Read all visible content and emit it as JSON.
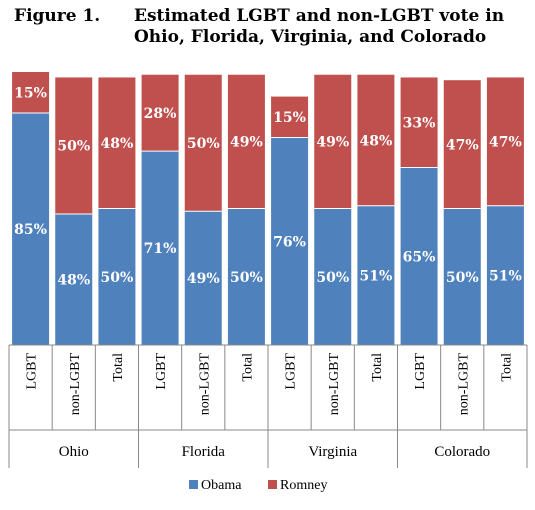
{
  "figure_label": "Figure 1.",
  "title": "Estimated LGBT and non-LGBT vote in Ohio, Florida, Virginia, and Colorado",
  "chart_data": {
    "type": "bar",
    "stacked": true,
    "groups": [
      {
        "name": "Ohio",
        "categories": [
          "LGBT",
          "non-LGBT",
          "Total"
        ]
      },
      {
        "name": "Florida",
        "categories": [
          "LGBT",
          "non-LGBT",
          "Total"
        ]
      },
      {
        "name": "Virginia",
        "categories": [
          "LGBT",
          "non-LGBT",
          "Total"
        ]
      },
      {
        "name": "Colorado",
        "categories": [
          "LGBT",
          "non-LGBT",
          "Total"
        ]
      }
    ],
    "categories": [
      "LGBT",
      "non-LGBT",
      "Total",
      "LGBT",
      "non-LGBT",
      "Total",
      "LGBT",
      "non-LGBT",
      "Total",
      "LGBT",
      "non-LGBT",
      "Total"
    ],
    "series": [
      {
        "name": "Obama",
        "color": "#4f81bd",
        "values": [
          85,
          48,
          50,
          71,
          49,
          50,
          76,
          50,
          51,
          65,
          50,
          51
        ],
        "labels": [
          "85%",
          "48%",
          "50%",
          "71%",
          "49%",
          "50%",
          "76%",
          "50%",
          "51%",
          "65%",
          "50%",
          "51%"
        ]
      },
      {
        "name": "Romney",
        "color": "#c0504d",
        "values": [
          15,
          50,
          48,
          28,
          50,
          49,
          15,
          49,
          48,
          33,
          47,
          47
        ],
        "labels": [
          "15%",
          "50%",
          "48%",
          "28%",
          "50%",
          "49%",
          "15%",
          "49%",
          "48%",
          "33%",
          "47%",
          "47%"
        ]
      }
    ],
    "ylim": [
      0,
      100
    ],
    "legend_position": "bottom"
  }
}
